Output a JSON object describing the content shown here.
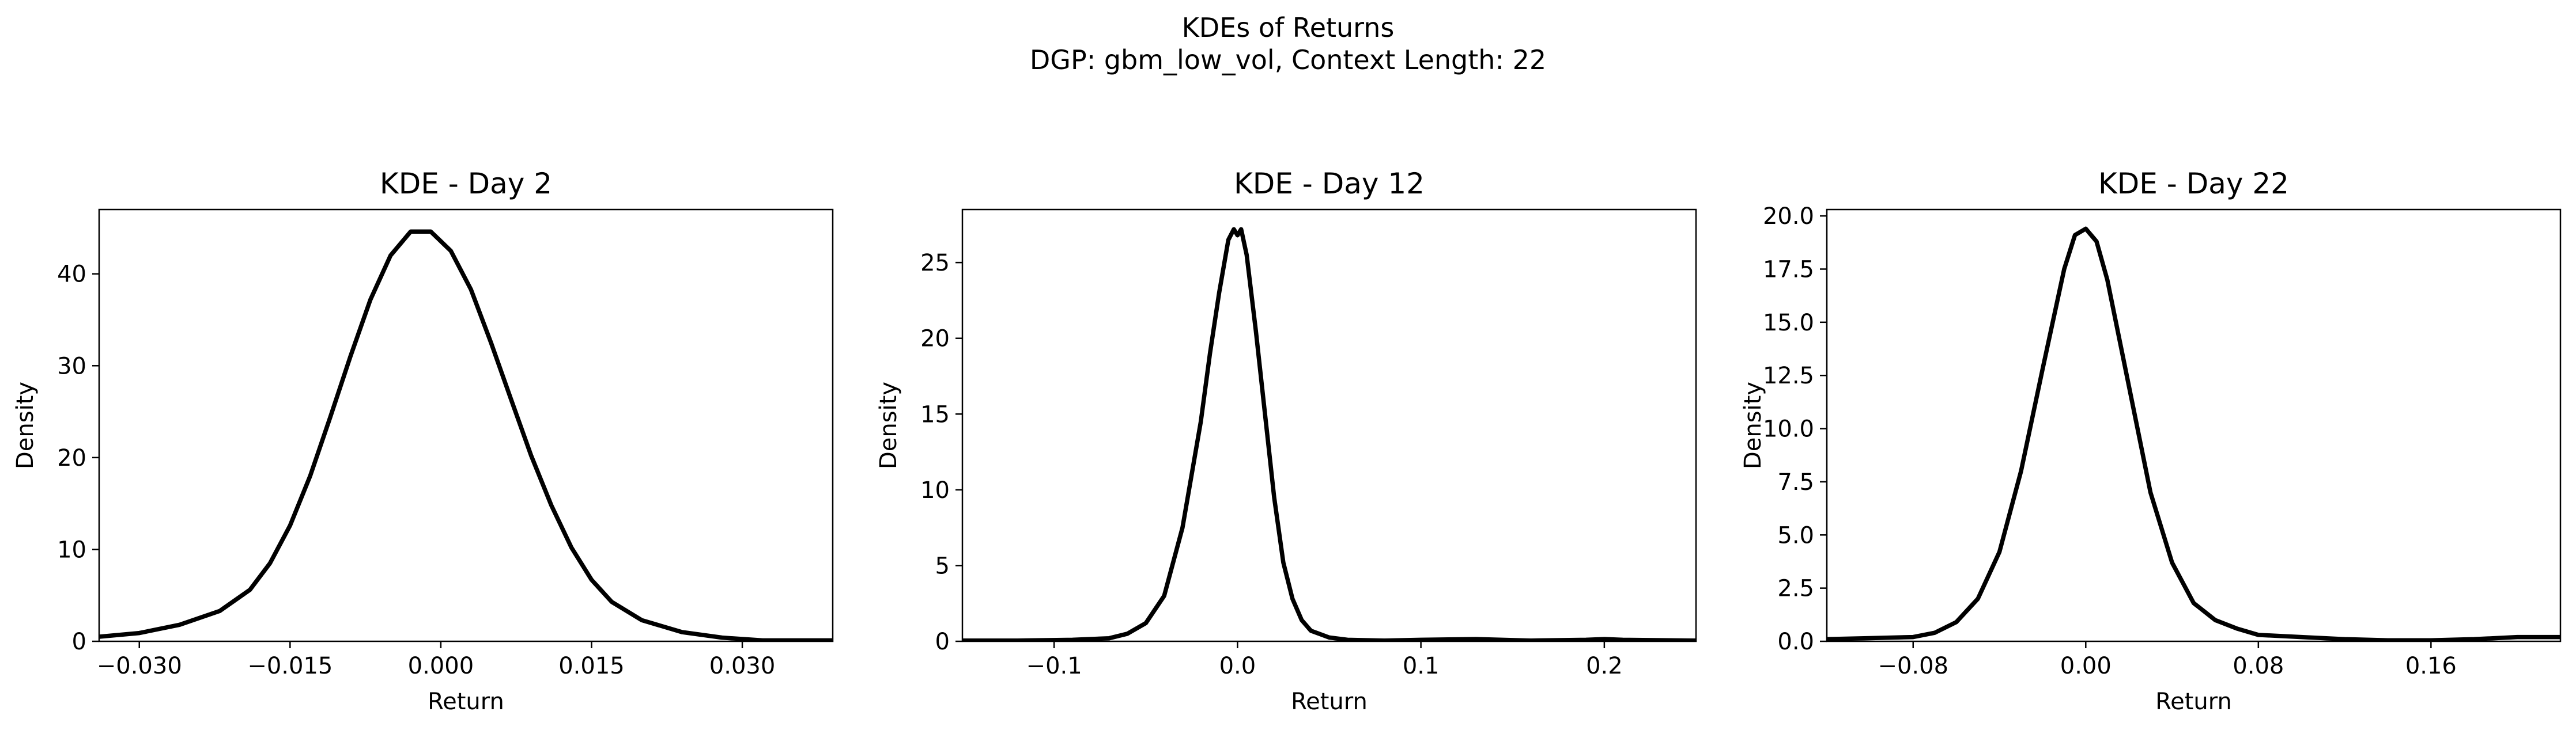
{
  "figure": {
    "suptitle_line1": "KDEs of Returns",
    "suptitle_line2": "DGP: gbm_low_vol, Context Length: 22"
  },
  "chart_data": [
    {
      "type": "line",
      "title": "KDE - Day 2",
      "xlabel": "Return",
      "ylabel": "Density",
      "xlim": [
        -0.034,
        0.039
      ],
      "ylim": [
        0,
        47
      ],
      "xticks": [
        -0.03,
        -0.015,
        0.0,
        0.015,
        0.03
      ],
      "xtick_labels": [
        "−0.030",
        "−0.015",
        "0.000",
        "0.015",
        "0.030"
      ],
      "yticks": [
        0,
        10,
        20,
        30,
        40
      ],
      "ytick_labels": [
        "0",
        "10",
        "20",
        "30",
        "40"
      ],
      "grid": false,
      "line_color": "#000000",
      "series": [
        {
          "x": [
            -0.034,
            -0.03,
            -0.026,
            -0.022,
            -0.019,
            -0.017,
            -0.015,
            -0.013,
            -0.011,
            -0.009,
            -0.007,
            -0.005,
            -0.003,
            -0.001,
            0.001,
            0.003,
            0.005,
            0.007,
            0.009,
            0.011,
            0.013,
            0.015,
            0.017,
            0.02,
            0.024,
            0.028,
            0.032,
            0.036,
            0.039
          ],
          "y": [
            0.5,
            0.9,
            1.8,
            3.3,
            5.6,
            8.5,
            12.6,
            18.0,
            24.4,
            31.0,
            37.2,
            42.0,
            44.6,
            44.6,
            42.5,
            38.3,
            32.5,
            26.3,
            20.2,
            14.8,
            10.2,
            6.7,
            4.3,
            2.3,
            1.0,
            0.4,
            0.1,
            0.1,
            0.1
          ]
        }
      ]
    },
    {
      "type": "line",
      "title": "KDE - Day 12",
      "xlabel": "Return",
      "ylabel": "Density",
      "xlim": [
        -0.15,
        0.25
      ],
      "ylim": [
        0,
        28.5
      ],
      "xticks": [
        -0.1,
        0.0,
        0.1,
        0.2
      ],
      "xtick_labels": [
        "−0.1",
        "0.0",
        "0.1",
        "0.2"
      ],
      "yticks": [
        0,
        5,
        10,
        15,
        20,
        25
      ],
      "ytick_labels": [
        "0",
        "5",
        "10",
        "15",
        "20",
        "25"
      ],
      "grid": false,
      "line_color": "#000000",
      "series": [
        {
          "x": [
            -0.15,
            -0.12,
            -0.09,
            -0.07,
            -0.06,
            -0.05,
            -0.04,
            -0.03,
            -0.02,
            -0.015,
            -0.01,
            -0.005,
            -0.002,
            0.0,
            0.002,
            0.005,
            0.01,
            0.015,
            0.02,
            0.025,
            0.03,
            0.035,
            0.04,
            0.05,
            0.06,
            0.08,
            0.1,
            0.13,
            0.16,
            0.19,
            0.2,
            0.21,
            0.25
          ],
          "y": [
            0.05,
            0.05,
            0.1,
            0.2,
            0.5,
            1.2,
            3.0,
            7.5,
            14.5,
            19.0,
            23.0,
            26.5,
            27.2,
            26.8,
            27.2,
            25.5,
            20.5,
            15.0,
            9.5,
            5.2,
            2.8,
            1.4,
            0.7,
            0.25,
            0.1,
            0.05,
            0.1,
            0.15,
            0.05,
            0.1,
            0.15,
            0.1,
            0.05
          ]
        }
      ]
    },
    {
      "type": "line",
      "title": "KDE - Day 22",
      "xlabel": "Return",
      "ylabel": "Density",
      "xlim": [
        -0.12,
        0.22
      ],
      "ylim": [
        0,
        20.3
      ],
      "xticks": [
        -0.08,
        0.0,
        0.08,
        0.16
      ],
      "xtick_labels": [
        "−0.08",
        "0.00",
        "0.08",
        "0.16"
      ],
      "yticks": [
        0,
        2.5,
        5,
        7.5,
        10,
        12.5,
        15,
        17.5,
        20
      ],
      "ytick_labels": [
        "0.0",
        "2.5",
        "5.0",
        "7.5",
        "10.0",
        "12.5",
        "15.0",
        "17.5",
        "20.0"
      ],
      "grid": false,
      "line_color": "#000000",
      "series": [
        {
          "x": [
            -0.12,
            -0.1,
            -0.08,
            -0.07,
            -0.06,
            -0.05,
            -0.04,
            -0.03,
            -0.02,
            -0.01,
            -0.005,
            0.0,
            0.005,
            0.01,
            0.02,
            0.03,
            0.04,
            0.05,
            0.06,
            0.07,
            0.08,
            0.1,
            0.12,
            0.14,
            0.16,
            0.18,
            0.2,
            0.22
          ],
          "y": [
            0.1,
            0.15,
            0.2,
            0.4,
            0.9,
            2.0,
            4.2,
            8.0,
            12.8,
            17.5,
            19.1,
            19.4,
            18.8,
            17.0,
            12.0,
            7.0,
            3.7,
            1.8,
            1.0,
            0.6,
            0.3,
            0.2,
            0.1,
            0.05,
            0.05,
            0.1,
            0.2,
            0.2
          ]
        }
      ]
    }
  ]
}
